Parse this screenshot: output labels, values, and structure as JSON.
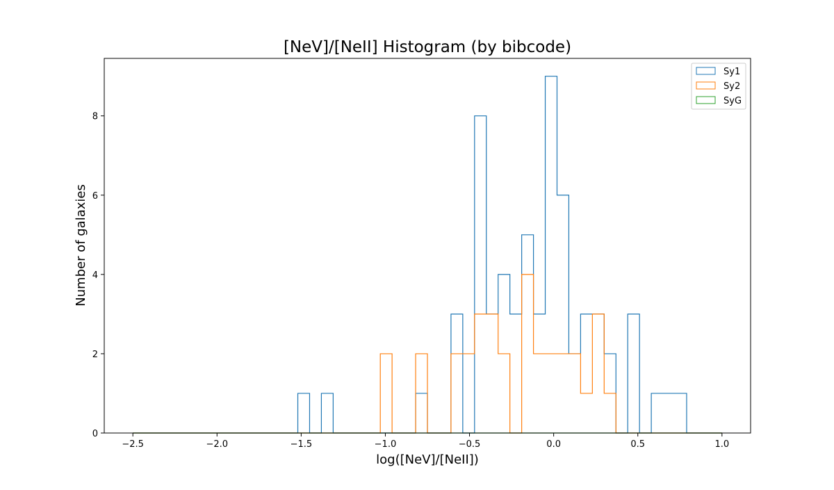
{
  "chart_data": {
    "type": "histogram",
    "title": "[NeV]/[NeII] Histogram (by bibcode)",
    "xlabel": "log([NeV]/[NeII])",
    "ylabel": "Number of galaxies",
    "xlim": [
      -2.67,
      1.17
    ],
    "ylim": [
      0,
      9.45
    ],
    "x_ticks": [
      -2.5,
      -2.0,
      -1.5,
      -1.0,
      -0.5,
      0.0,
      0.5,
      1.0
    ],
    "x_tick_labels": [
      "−2.5",
      "−2.0",
      "−1.5",
      "−1.0",
      "−0.5",
      "0.0",
      "0.5",
      "1.0"
    ],
    "y_ticks": [
      0,
      2,
      4,
      6,
      8
    ],
    "y_tick_labels": [
      "0",
      "2",
      "4",
      "6",
      "8"
    ],
    "bin_edges": [
      -2.5,
      -2.43,
      -2.36,
      -2.29,
      -2.22,
      -2.15,
      -2.08,
      -2.01,
      -1.94,
      -1.87,
      -1.8,
      -1.73,
      -1.66,
      -1.59,
      -1.52,
      -1.45,
      -1.38,
      -1.31,
      -1.24,
      -1.17,
      -1.1,
      -1.03,
      -0.96,
      -0.89,
      -0.82,
      -0.75,
      -0.68,
      -0.61,
      -0.54,
      -0.47,
      -0.4,
      -0.33,
      -0.26,
      -0.19,
      -0.12,
      -0.05,
      0.02,
      0.09,
      0.16,
      0.23,
      0.3,
      0.37,
      0.44,
      0.51,
      0.58,
      0.65,
      0.72,
      0.79,
      0.86,
      0.93,
      1.0
    ],
    "series": [
      {
        "name": "Sy1",
        "color": "#1f77b4",
        "counts": [
          0,
          0,
          0,
          0,
          0,
          0,
          0,
          0,
          0,
          0,
          0,
          0,
          0,
          0,
          1,
          0,
          1,
          0,
          0,
          0,
          0,
          0,
          0,
          0,
          1,
          0,
          0,
          3,
          0,
          8,
          3,
          4,
          3,
          5,
          3,
          9,
          6,
          2,
          3,
          3,
          2,
          0,
          3,
          0,
          1,
          1,
          1,
          0,
          0,
          0
        ]
      },
      {
        "name": "Sy2",
        "color": "#ff7f0e",
        "counts": [
          0,
          0,
          0,
          0,
          0,
          0,
          0,
          0,
          0,
          0,
          0,
          0,
          0,
          0,
          0,
          0,
          0,
          0,
          0,
          0,
          0,
          2,
          0,
          0,
          2,
          0,
          0,
          2,
          2,
          3,
          3,
          2,
          0,
          4,
          2,
          2,
          2,
          2,
          1,
          3,
          1,
          0,
          0,
          0,
          0,
          0,
          0,
          0,
          0,
          0
        ]
      },
      {
        "name": "SyG",
        "color": "#2ca02c",
        "counts": [
          0,
          0,
          0,
          0,
          0,
          0,
          0,
          0,
          0,
          0,
          0,
          0,
          0,
          0,
          0,
          0,
          0,
          0,
          0,
          0,
          0,
          0,
          0,
          0,
          0,
          0,
          0,
          0,
          0,
          0,
          0,
          0,
          0,
          0,
          0,
          0,
          0,
          0,
          0,
          0,
          0,
          0,
          0,
          0,
          0,
          0,
          0,
          0,
          0,
          0
        ]
      }
    ],
    "legend_position": "top-right",
    "grid": false
  }
}
